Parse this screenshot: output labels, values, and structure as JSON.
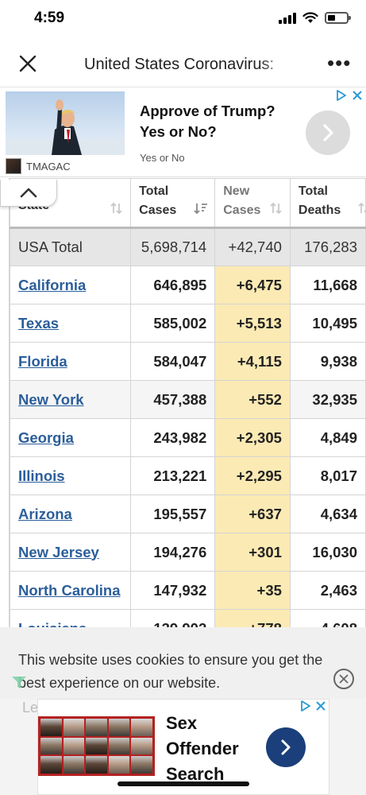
{
  "status_bar": {
    "time": "4:59"
  },
  "nav": {
    "title": "United States Coronavirus:"
  },
  "top_ad": {
    "headline": "Approve of Trump? Yes or No?",
    "subtext": "Yes or No",
    "brand": "TMAGAC"
  },
  "table": {
    "headers": {
      "state": "State",
      "total_cases": "Total Cases",
      "new_cases": "New Cases",
      "total_deaths": "Total Deaths"
    },
    "total_row": {
      "state": "USA Total",
      "total_cases": "5,698,714",
      "new_cases": "+42,740",
      "total_deaths": "176,283"
    },
    "rows": [
      {
        "state": "California",
        "total_cases": "646,895",
        "new_cases": "+6,475",
        "total_deaths": "11,668"
      },
      {
        "state": "Texas",
        "total_cases": "585,002",
        "new_cases": "+5,513",
        "total_deaths": "10,495"
      },
      {
        "state": "Florida",
        "total_cases": "584,047",
        "new_cases": "+4,115",
        "total_deaths": "9,938"
      },
      {
        "state": "New York",
        "total_cases": "457,388",
        "new_cases": "+552",
        "total_deaths": "32,935"
      },
      {
        "state": "Georgia",
        "total_cases": "243,982",
        "new_cases": "+2,305",
        "total_deaths": "4,849"
      },
      {
        "state": "Illinois",
        "total_cases": "213,221",
        "new_cases": "+2,295",
        "total_deaths": "8,017"
      },
      {
        "state": "Arizona",
        "total_cases": "195,557",
        "new_cases": "+637",
        "total_deaths": "4,634"
      },
      {
        "state": "New Jersey",
        "total_cases": "194,276",
        "new_cases": "+301",
        "total_deaths": "16,030"
      },
      {
        "state": "North Carolina",
        "total_cases": "147,932",
        "new_cases": "+35",
        "total_deaths": "2,463"
      },
      {
        "state": "Louisiana",
        "total_cases": "139,902",
        "new_cases": "+778",
        "total_deaths": "4,608"
      }
    ]
  },
  "cookie_banner": {
    "text": "This website uses cookies to ensure you get the best experience on our website."
  },
  "ghost": {
    "text": "Le"
  },
  "bottom_ad": {
    "headline": "Sex Offender Search"
  },
  "colors": {
    "link": "#2b5e9a",
    "new_cases_highlight": "#fbeab4",
    "total_row_bg": "#e6e6e6",
    "bottom_ad_button": "#1b3f7a"
  }
}
